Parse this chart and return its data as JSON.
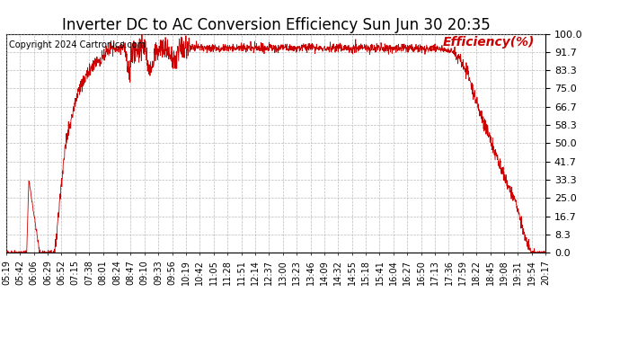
{
  "title": "Inverter DC to AC Conversion Efficiency Sun Jun 30 20:35",
  "copyright": "Copyright 2024 Cartronics.com",
  "legend_label": "Efficiency(%)",
  "legend_color": "#cc0000",
  "line_color": "#cc0000",
  "background_color": "#ffffff",
  "grid_color": "#aaaaaa",
  "ylim": [
    0.0,
    100.0
  ],
  "yticks": [
    0.0,
    8.3,
    16.7,
    25.0,
    33.3,
    41.7,
    50.0,
    58.3,
    66.7,
    75.0,
    83.3,
    91.7,
    100.0
  ],
  "xtick_labels": [
    "05:19",
    "05:42",
    "06:06",
    "06:29",
    "06:52",
    "07:15",
    "07:38",
    "08:01",
    "08:24",
    "08:47",
    "09:10",
    "09:33",
    "09:56",
    "10:19",
    "10:42",
    "11:05",
    "11:28",
    "11:51",
    "12:14",
    "12:37",
    "13:00",
    "13:23",
    "13:46",
    "14:09",
    "14:32",
    "14:55",
    "15:18",
    "15:41",
    "16:04",
    "16:27",
    "16:50",
    "17:13",
    "17:36",
    "17:59",
    "18:22",
    "18:45",
    "19:08",
    "19:31",
    "19:54",
    "20:17"
  ],
  "title_fontsize": 12,
  "copyright_fontsize": 7,
  "legend_fontsize": 10,
  "tick_fontsize": 7,
  "ytick_fontsize": 8,
  "noise_seed": 42
}
